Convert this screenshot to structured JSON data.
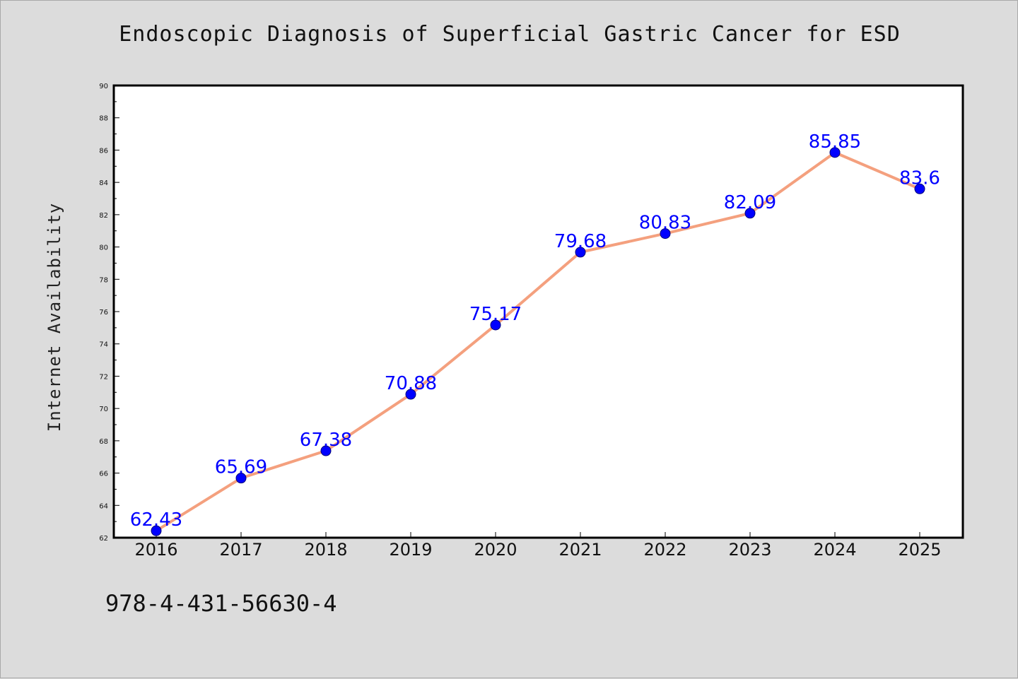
{
  "chart_data": {
    "type": "line",
    "title": "Endoscopic Diagnosis of Superficial Gastric Cancer for ESD",
    "xlabel": "",
    "ylabel": "Internet Availability",
    "categories": [
      "2016",
      "2017",
      "2018",
      "2019",
      "2020",
      "2021",
      "2022",
      "2023",
      "2024",
      "2025"
    ],
    "series": [
      {
        "values": [
          62.43,
          65.69,
          67.38,
          70.88,
          75.17,
          79.68,
          80.83,
          82.09,
          85.85,
          83.6
        ],
        "labels": [
          "62.43",
          "65.69",
          "67.38",
          "70.88",
          "75.17",
          "79.68",
          "80.83",
          "82.09",
          "85.85",
          "83.6"
        ]
      }
    ],
    "ylim": [
      62,
      90
    ],
    "yticks": [
      "62",
      "64",
      "66",
      "68",
      "70",
      "72",
      "74",
      "76",
      "78",
      "80",
      "82",
      "84",
      "86",
      "88",
      "90"
    ],
    "grid": false,
    "legend": "none"
  },
  "footer_text": "978-4-431-56630-4",
  "colors": {
    "background": "#dcdcdc",
    "plot_background": "#ffffff",
    "line": "#f4a07e",
    "marker": "#0000ff",
    "marker_edge": "#00007a",
    "data_label": "#0000ff"
  }
}
